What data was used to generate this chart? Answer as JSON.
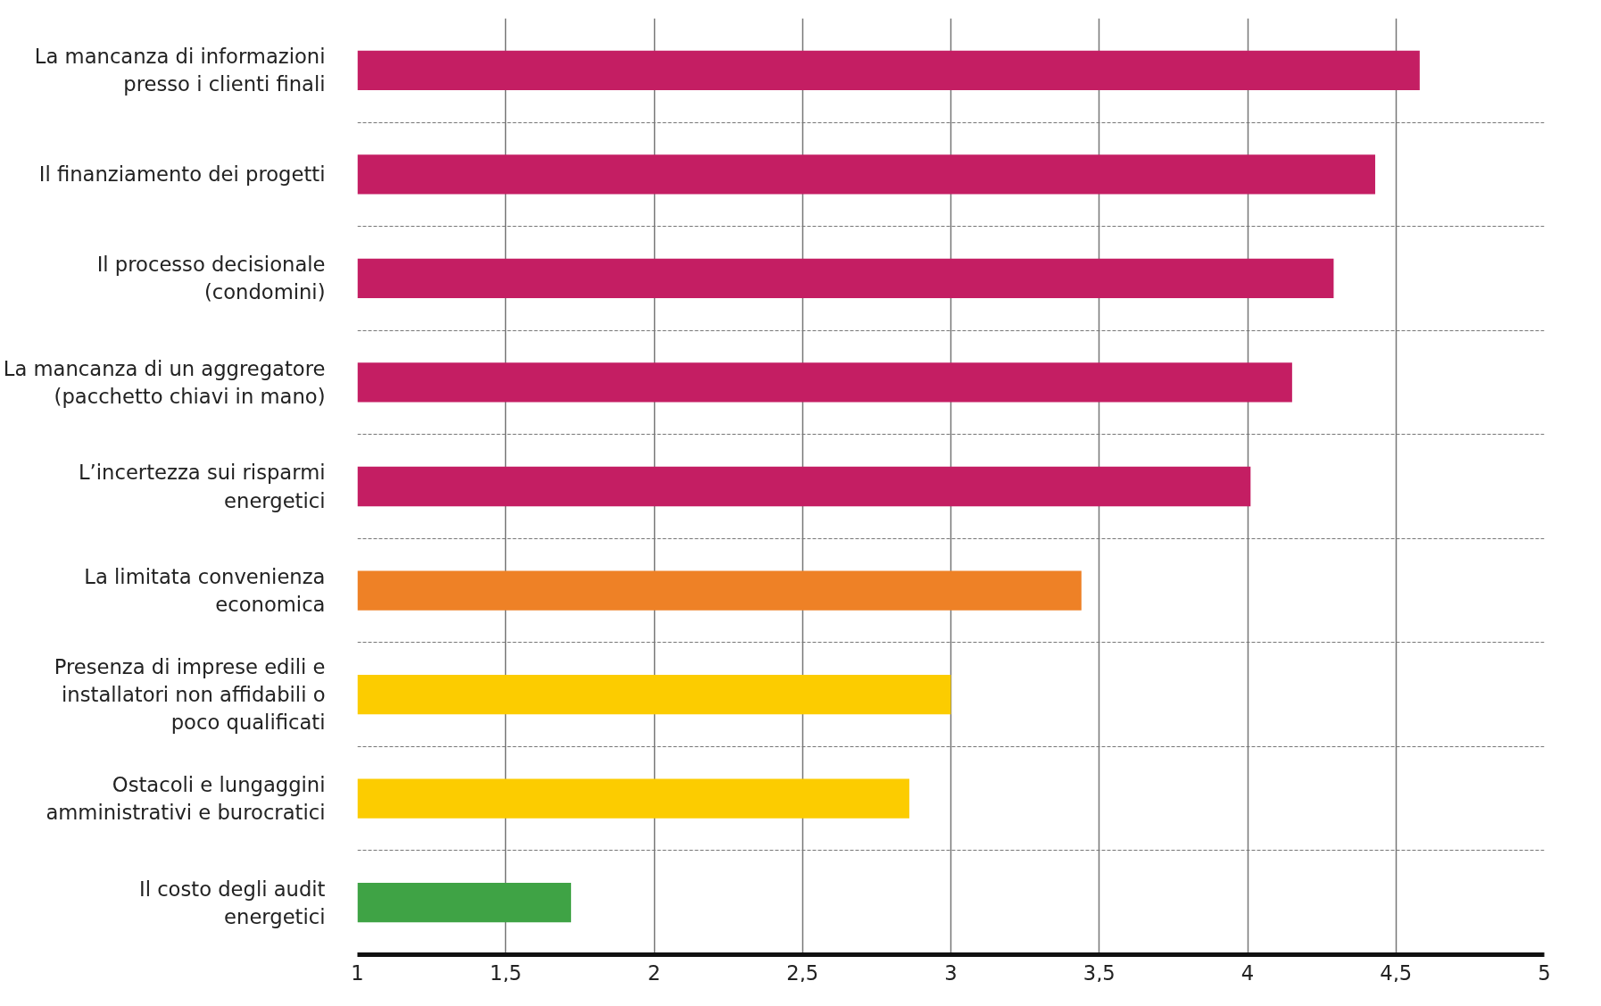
{
  "chart_data": {
    "type": "bar",
    "orientation": "horizontal",
    "categories": [
      "La mancanza di informazioni presso i clienti finali",
      "Il finanziamento dei progetti",
      "Il processo decisionale (condomini)",
      "La mancanza di un aggregatore (pacchetto chiavi in mano)",
      "L’incertezza sui risparmi energetici",
      "La limitata convenienza economica",
      "Presenza di imprese edili e installatori non affidabili o poco qualificati",
      "Ostacoli e lungaggini amministrativi e burocratici",
      "Il costo degli audit energetici"
    ],
    "values": [
      4.58,
      4.43,
      4.29,
      4.15,
      4.01,
      3.44,
      3.0,
      2.86,
      1.72
    ],
    "colors": [
      "#c41e63",
      "#c41e63",
      "#c41e63",
      "#c41e63",
      "#c41e63",
      "#ee8126",
      "#fccc00",
      "#fccc00",
      "#3fa345"
    ],
    "xlim": [
      1,
      5
    ],
    "xticks": [
      1,
      {
        "value": 1.5,
        "label": "1,5"
      },
      2,
      {
        "value": 2.5,
        "label": "2,5"
      },
      3,
      {
        "value": 3.5,
        "label": "3,5"
      },
      4,
      {
        "value": 4.5,
        "label": "4,5"
      },
      5
    ],
    "grid": true
  }
}
